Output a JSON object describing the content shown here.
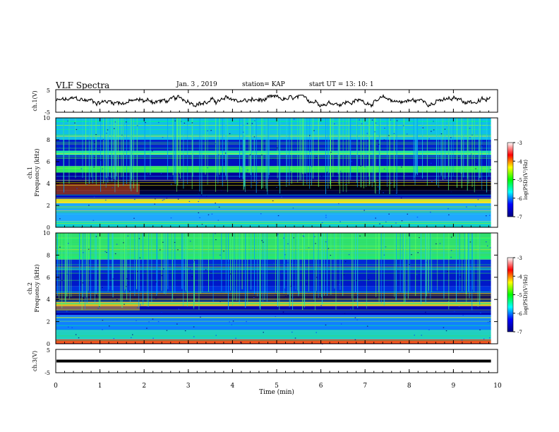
{
  "header": {
    "title": "VLF Spectra",
    "date": "Jan. 3 , 2019",
    "station": "station= KAP",
    "start_time": "start UT = 13: 10: 1"
  },
  "chart_data": [
    {
      "type": "line",
      "panel": "top waveform",
      "ylabel": "ch.1(V)",
      "ylim": [
        -5,
        5
      ],
      "yticks": [
        "5",
        "-5"
      ],
      "x_extent_min": [
        0,
        9.85
      ],
      "description_values": {
        "level_mean": 0.0,
        "level_amplitude": 1.6
      },
      "color": "#000000"
    },
    {
      "type": "heatmap",
      "panel": "ch.1 spectrogram",
      "ylabel": "ch.1 Frequency (kHz)",
      "ylim": [
        0,
        10
      ],
      "yticks": [
        "0",
        "2",
        "4",
        "6",
        "8",
        "10"
      ],
      "x_extent_min": [
        0,
        9.85
      ],
      "bands_khz": [
        {
          "from": 0.0,
          "to": 0.5,
          "color": "#00c8e6"
        },
        {
          "from": 0.5,
          "to": 2.2,
          "color": "#20a8ff"
        },
        {
          "from": 2.2,
          "to": 2.6,
          "color": "#f0e020"
        },
        {
          "from": 2.6,
          "to": 3.0,
          "color": "#0000c8"
        },
        {
          "from": 3.0,
          "to": 3.4,
          "color": "#000040"
        },
        {
          "from": 3.4,
          "to": 4.2,
          "color": "#000010"
        },
        {
          "from": 4.2,
          "to": 5.0,
          "color": "#0000a0"
        },
        {
          "from": 5.0,
          "to": 5.6,
          "color": "#30e860"
        },
        {
          "from": 5.6,
          "to": 6.6,
          "color": "#0010c0"
        },
        {
          "from": 6.6,
          "to": 7.0,
          "color": "#20e8a0"
        },
        {
          "from": 7.0,
          "to": 8.0,
          "color": "#0020d0"
        },
        {
          "from": 8.0,
          "to": 10.0,
          "color": "#10c0e8"
        }
      ],
      "early_segment_min": [
        0,
        1.9
      ],
      "colorbar": {
        "label": "log(PSD)(V²/Hz)",
        "range": [
          -7,
          -3
        ],
        "ticks": [
          "-3",
          "-4",
          "-5",
          "-6",
          "-7"
        ]
      }
    },
    {
      "type": "heatmap",
      "panel": "ch.2 spectrogram",
      "ylabel": "ch.2 Frequency (kHz)",
      "ylim": [
        0,
        10
      ],
      "yticks": [
        "0",
        "2",
        "4",
        "6",
        "8",
        "10"
      ],
      "x_extent_min": [
        0,
        9.85
      ],
      "bands_khz": [
        {
          "from": 0.0,
          "to": 0.4,
          "color": "#f03020"
        },
        {
          "from": 0.4,
          "to": 1.2,
          "color": "#20d0c0"
        },
        {
          "from": 1.2,
          "to": 2.6,
          "color": "#1080ff"
        },
        {
          "from": 2.6,
          "to": 3.4,
          "color": "#0000b0"
        },
        {
          "from": 3.4,
          "to": 3.8,
          "color": "#e0c020"
        },
        {
          "from": 3.8,
          "to": 4.6,
          "color": "#000060"
        },
        {
          "from": 4.6,
          "to": 5.2,
          "color": "#0030e0"
        },
        {
          "from": 5.2,
          "to": 6.4,
          "color": "#0018c8"
        },
        {
          "from": 6.4,
          "to": 7.6,
          "color": "#0028d8"
        },
        {
          "from": 7.6,
          "to": 10.0,
          "color": "#30e070"
        }
      ],
      "early_segment_min": [
        0,
        1.9
      ],
      "colorbar": {
        "label": "log(PSD)(V²/Hz)",
        "range": [
          -7,
          -3
        ],
        "ticks": [
          "-3",
          "-4",
          "-5",
          "-6",
          "-7"
        ]
      }
    },
    {
      "type": "line",
      "panel": "bottom waveform",
      "ylabel": "ch.3(V)",
      "ylim": [
        -5,
        5
      ],
      "yticks": [
        "5",
        "-5"
      ],
      "x_extent_min": [
        0,
        9.85
      ],
      "description_values": {
        "level_mean": 0.0,
        "level_amplitude": 0
      },
      "color": "#000000"
    }
  ],
  "x_axis": {
    "label": "Time (min)",
    "range": [
      0,
      10
    ],
    "ticks": [
      "0",
      "1",
      "2",
      "3",
      "4",
      "5",
      "6",
      "7",
      "8",
      "9",
      "10"
    ]
  },
  "colormap": [
    "#000080",
    "#0000ff",
    "#00ffff",
    "#00ff00",
    "#ffff00",
    "#ff0000",
    "#ffffff"
  ]
}
